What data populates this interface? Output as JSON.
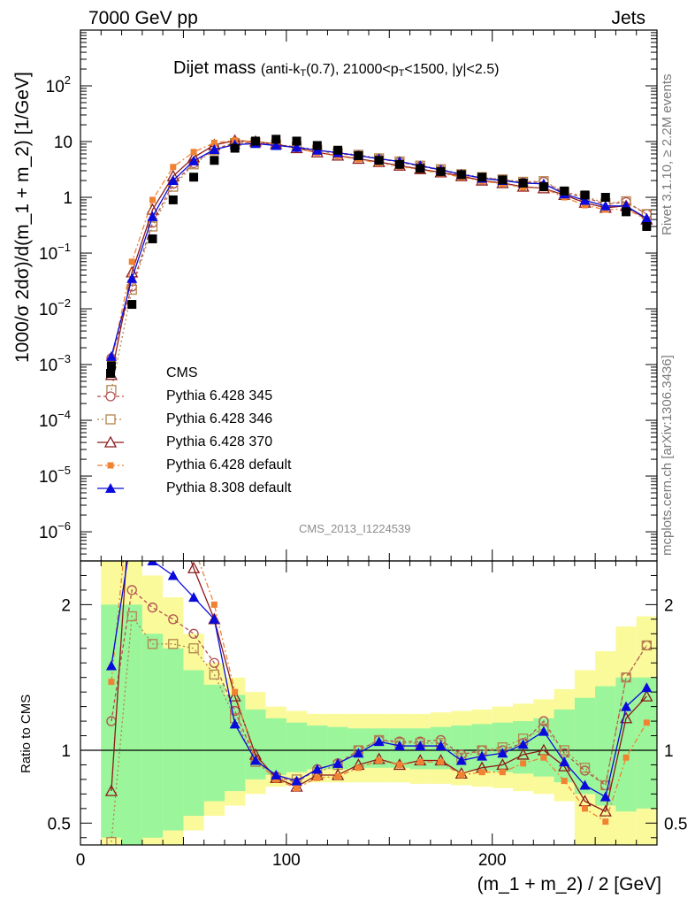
{
  "header": {
    "left": "7000 GeV pp",
    "right": "Jets"
  },
  "side_labels": {
    "rivet": "Rivet 3.1.10, ≥ 2.2M events",
    "mcplots": "mcplots.cern.ch [arXiv:1306.3436]"
  },
  "plot_title": {
    "main": "Dijet mass",
    "kt": "(anti-k",
    "kt_sub": "T",
    "cut1": "(0.7), 21000<p",
    "cut_sub": "T",
    "cut2": "<1500, |y|<2.5)"
  },
  "analysis_id": "CMS_2013_I1224539",
  "axes": {
    "ylabel_main": "1000/σ 2dσ)/d(m_1 + m_2) [1/GeV]",
    "ylabel_ratio": "Ratio to CMS",
    "xlabel": "(m_1 + m_2) / 2 [GeV]"
  },
  "chart_data": {
    "type": "scatter",
    "xlim": [
      0,
      280
    ],
    "y_main_log": true,
    "y_main_lim": [
      3e-07,
      1000
    ],
    "y_ratio_lim": [
      0.35,
      2.3
    ],
    "x_ticks": [
      {
        "v": 0,
        "label": "0"
      },
      {
        "v": 100,
        "label": "100"
      },
      {
        "v": 200,
        "label": "200"
      }
    ],
    "y_main_ticks": [
      {
        "exp": 2,
        "label": "10",
        "sup": "2"
      },
      {
        "exp": 1,
        "label": "10",
        "sup": ""
      },
      {
        "exp": 0,
        "label": "1",
        "sup": ""
      },
      {
        "exp": -1,
        "label": "10",
        "sup": "−1"
      },
      {
        "exp": -2,
        "label": "10",
        "sup": "−2"
      },
      {
        "exp": -3,
        "label": "10",
        "sup": "−3"
      },
      {
        "exp": -4,
        "label": "10",
        "sup": "−4"
      },
      {
        "exp": -5,
        "label": "10",
        "sup": "−5"
      },
      {
        "exp": -6,
        "label": "10",
        "sup": "−6"
      }
    ],
    "y_ratio_ticks": [
      {
        "v": 0.5,
        "label": "0.5"
      },
      {
        "v": 1,
        "label": "1"
      },
      {
        "v": 2,
        "label": "2"
      }
    ],
    "x": [
      15,
      25,
      35,
      45,
      55,
      65,
      75,
      85,
      95,
      105,
      115,
      125,
      135,
      145,
      155,
      165,
      175,
      185,
      195,
      205,
      215,
      225,
      235,
      245,
      255,
      265,
      275
    ],
    "bin_edges": [
      10,
      20,
      30,
      40,
      50,
      60,
      70,
      80,
      90,
      100,
      110,
      120,
      130,
      140,
      150,
      160,
      170,
      180,
      190,
      200,
      210,
      220,
      230,
      240,
      250,
      260,
      270,
      280
    ],
    "band_inner": [
      [
        0.4,
        2.0
      ],
      [
        0.35,
        2.0
      ],
      [
        0.4,
        1.8
      ],
      [
        0.45,
        1.7
      ],
      [
        0.55,
        1.55
      ],
      [
        0.65,
        1.45
      ],
      [
        0.72,
        1.38
      ],
      [
        0.8,
        1.28
      ],
      [
        0.83,
        1.22
      ],
      [
        0.85,
        1.19
      ],
      [
        0.87,
        1.17
      ],
      [
        0.87,
        1.16
      ],
      [
        0.88,
        1.15
      ],
      [
        0.88,
        1.15
      ],
      [
        0.88,
        1.15
      ],
      [
        0.87,
        1.15
      ],
      [
        0.87,
        1.16
      ],
      [
        0.86,
        1.17
      ],
      [
        0.86,
        1.18
      ],
      [
        0.85,
        1.19
      ],
      [
        0.84,
        1.2
      ],
      [
        0.82,
        1.22
      ],
      [
        0.78,
        1.28
      ],
      [
        0.7,
        1.36
      ],
      [
        0.62,
        1.44
      ],
      [
        0.58,
        1.5
      ],
      [
        0.6,
        1.5
      ]
    ],
    "band_outer": [
      [
        0.35,
        2.3
      ],
      [
        0.35,
        2.3
      ],
      [
        0.35,
        2.2
      ],
      [
        0.35,
        2.05
      ],
      [
        0.45,
        1.8
      ],
      [
        0.55,
        1.6
      ],
      [
        0.62,
        1.5
      ],
      [
        0.7,
        1.4
      ],
      [
        0.75,
        1.3
      ],
      [
        0.77,
        1.27
      ],
      [
        0.78,
        1.25
      ],
      [
        0.78,
        1.25
      ],
      [
        0.78,
        1.25
      ],
      [
        0.78,
        1.25
      ],
      [
        0.78,
        1.25
      ],
      [
        0.77,
        1.25
      ],
      [
        0.77,
        1.26
      ],
      [
        0.76,
        1.27
      ],
      [
        0.75,
        1.28
      ],
      [
        0.74,
        1.3
      ],
      [
        0.72,
        1.32
      ],
      [
        0.7,
        1.35
      ],
      [
        0.65,
        1.42
      ],
      [
        0.35,
        1.55
      ],
      [
        0.35,
        1.68
      ],
      [
        0.35,
        1.85
      ],
      [
        0.35,
        1.92
      ]
    ],
    "series": [
      {
        "name": "CMS",
        "style": "data",
        "color": "#000000",
        "marker": "filled-square",
        "values": [
          0.00095,
          0.012,
          0.18,
          0.9,
          2.3,
          4.6,
          7.6,
          10.2,
          11.0,
          10.2,
          8.5,
          7.0,
          5.6,
          4.6,
          3.9,
          3.3,
          2.9,
          2.55,
          2.3,
          2.05,
          1.8,
          1.55,
          1.3,
          1.1,
          1.0,
          0.55,
          0.3
        ]
      },
      {
        "name": "Pythia 6.428 345",
        "color": "#b25050",
        "dash": "4,3",
        "marker": "open-circle",
        "values": [
          0.0013,
          0.025,
          0.35,
          1.75,
          4.1,
          7.3,
          9.6,
          9.6,
          8.8,
          7.9,
          6.9,
          6.1,
          5.6,
          4.9,
          4.3,
          3.6,
          3.1,
          2.5,
          2.25,
          2.05,
          1.85,
          1.9,
          1.2,
          1.0,
          0.75,
          0.82,
          0.5
        ],
        "ratio": [
          1.2,
          2.1,
          1.98,
          1.9,
          1.8,
          1.6,
          1.27,
          0.94,
          0.82,
          0.78,
          0.87,
          0.91,
          1.0,
          1.07,
          1.06,
          1.06,
          1.07,
          0.97,
          1.0,
          1.0,
          1.05,
          1.2,
          0.98,
          0.86,
          0.76,
          1.5,
          1.72
        ]
      },
      {
        "name": "Pythia 6.428 346",
        "color": "#b2844c",
        "dash": "2,3",
        "marker": "open-square",
        "values": [
          0.00035,
          0.022,
          0.3,
          1.55,
          3.9,
          7.0,
          9.4,
          9.5,
          8.9,
          8.1,
          7.1,
          6.3,
          5.8,
          5.0,
          4.4,
          3.7,
          3.2,
          2.6,
          2.3,
          2.1,
          1.9,
          1.95,
          1.25,
          1.05,
          0.78,
          0.85,
          0.5
        ],
        "ratio": [
          0.37,
          1.92,
          1.73,
          1.73,
          1.7,
          1.52,
          1.22,
          0.92,
          0.81,
          0.8,
          0.85,
          0.9,
          1.0,
          1.07,
          1.05,
          1.05,
          1.05,
          0.95,
          1.0,
          1.02,
          1.08,
          1.15,
          1.0,
          0.88,
          0.76,
          1.5,
          1.72
        ]
      },
      {
        "name": "Pythia 6.428 370",
        "color": "#8b1a1a",
        "dash": "",
        "marker": "open-triangle",
        "values": [
          0.00065,
          0.045,
          0.6,
          2.4,
          5.2,
          8.7,
          10.4,
          10.0,
          9.0,
          7.6,
          6.4,
          5.6,
          4.9,
          4.3,
          3.7,
          3.2,
          2.8,
          2.4,
          2.0,
          1.8,
          1.55,
          1.45,
          1.1,
          0.8,
          0.65,
          0.7,
          0.4
        ],
        "ratio": [
          0.72,
          2.9,
          2.9,
          2.65,
          2.25,
          1.9,
          1.37,
          0.97,
          0.81,
          0.75,
          0.83,
          0.83,
          0.9,
          0.94,
          0.9,
          0.93,
          0.93,
          0.84,
          0.88,
          0.9,
          0.97,
          1.0,
          0.89,
          0.65,
          0.58,
          1.22,
          1.37
        ]
      },
      {
        "name": "Pythia 6.428 default",
        "color": "#f08232",
        "dash": "6,3,2,3",
        "marker": "small-filled-square",
        "values": [
          0.0011,
          0.07,
          0.9,
          3.5,
          6.5,
          9.5,
          10.5,
          9.9,
          8.8,
          7.5,
          6.3,
          5.5,
          4.8,
          4.1,
          3.6,
          3.1,
          2.7,
          2.3,
          1.95,
          1.75,
          1.5,
          1.45,
          1.0,
          0.72,
          0.6,
          0.62,
          0.4
        ],
        "ratio": [
          1.47,
          2.9,
          2.9,
          2.85,
          2.4,
          2.0,
          1.4,
          0.93,
          0.8,
          0.74,
          0.81,
          0.82,
          0.88,
          0.93,
          0.9,
          0.92,
          0.92,
          0.83,
          0.85,
          0.85,
          0.91,
          0.95,
          0.79,
          0.6,
          0.51,
          0.95,
          1.19
        ]
      },
      {
        "name": "Pythia 8.308 default",
        "color": "#0a0adc",
        "dash": "",
        "marker": "filled-triangle",
        "values": [
          0.0014,
          0.035,
          0.45,
          2.0,
          4.5,
          7.2,
          8.8,
          9.2,
          8.5,
          7.9,
          7.0,
          6.3,
          5.6,
          4.9,
          4.4,
          3.7,
          3.1,
          2.6,
          2.2,
          2.0,
          1.8,
          1.75,
          1.15,
          0.88,
          0.7,
          0.7,
          0.42
        ],
        "ratio": [
          1.58,
          2.5,
          2.3,
          2.2,
          2.05,
          1.9,
          1.18,
          0.93,
          0.83,
          0.79,
          0.87,
          0.91,
          0.98,
          1.06,
          1.03,
          1.03,
          1.03,
          0.93,
          0.96,
          0.98,
          1.04,
          1.13,
          0.92,
          0.76,
          0.68,
          1.3,
          1.43
        ]
      }
    ]
  },
  "colors": {
    "band_inner": "#9bf59b",
    "band_outer": "#fafa9b",
    "ratio_unity": "#000000"
  }
}
